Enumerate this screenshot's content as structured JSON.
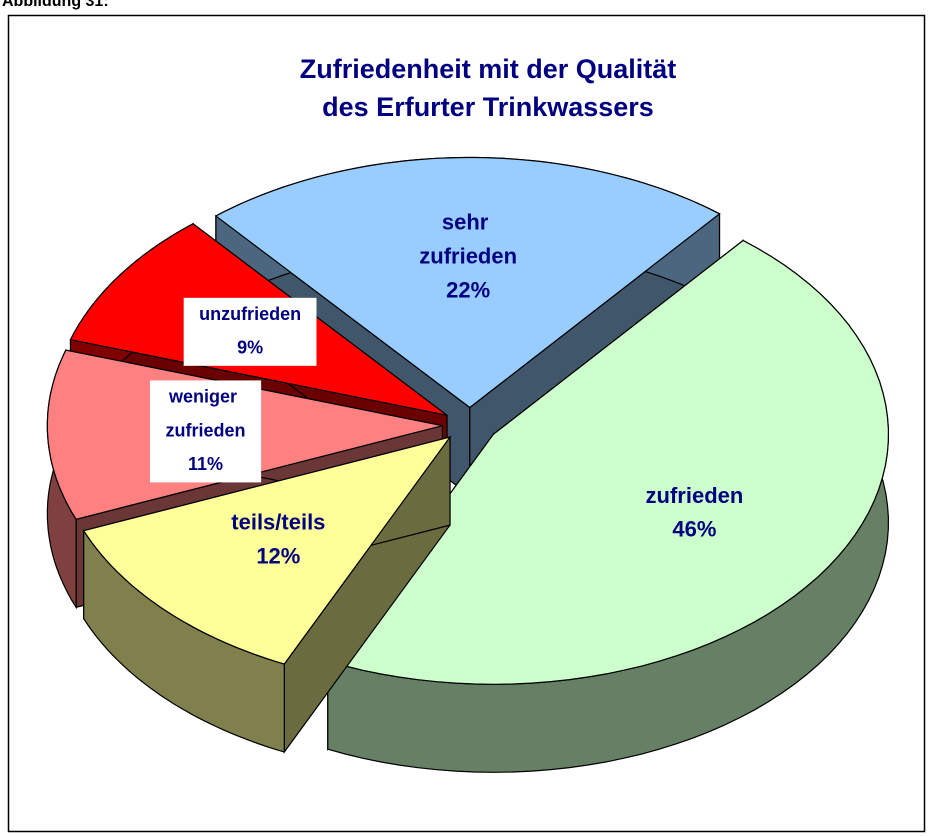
{
  "caption": "Abbildung 31:",
  "chart_data": {
    "type": "pie",
    "title": [
      "Zufriedenheit mit der Qualität",
      "des Erfurter Trinkwassers"
    ],
    "categories": [
      "sehr zufrieden",
      "zufrieden",
      "teils/teils",
      "weniger zufrieden",
      "unzufrieden"
    ],
    "values": [
      22,
      46,
      12,
      11,
      9
    ],
    "value_labels": [
      "22%",
      "46%",
      "12%",
      "11%",
      "9%"
    ],
    "colors": [
      "#99ccff",
      "#ccffcc",
      "#ffff99",
      "#ff8080",
      "#ff0000"
    ]
  }
}
